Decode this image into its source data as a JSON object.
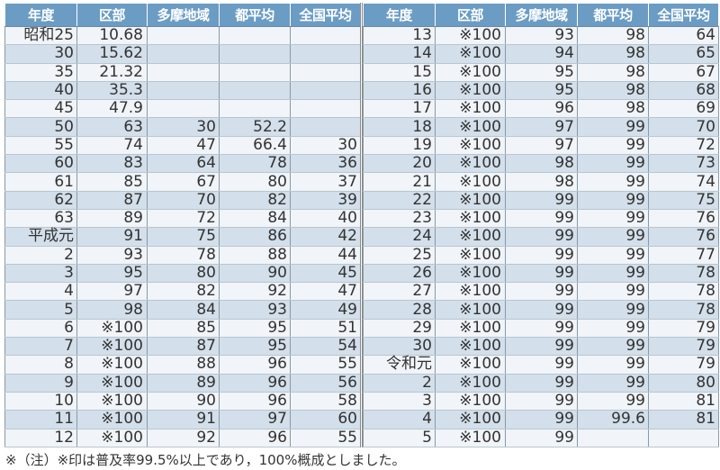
{
  "headers": [
    "年度",
    "区部",
    "多摩地域",
    "都平均",
    "全国平均"
  ],
  "left_rows": [
    [
      "昭和25",
      "10.68",
      "",
      "",
      ""
    ],
    [
      "30",
      "15.62",
      "",
      "",
      ""
    ],
    [
      "35",
      "21.32",
      "",
      "",
      ""
    ],
    [
      "40",
      "35.3",
      "",
      "",
      ""
    ],
    [
      "45",
      "47.9",
      "",
      "",
      ""
    ],
    [
      "50",
      "63",
      "30",
      "52.2",
      ""
    ],
    [
      "55",
      "74",
      "47",
      "66.4",
      "30"
    ],
    [
      "60",
      "83",
      "64",
      "78",
      "36"
    ],
    [
      "61",
      "85",
      "67",
      "80",
      "37"
    ],
    [
      "62",
      "87",
      "70",
      "82",
      "39"
    ],
    [
      "63",
      "89",
      "72",
      "84",
      "40"
    ],
    [
      "平成元",
      "91",
      "75",
      "86",
      "42"
    ],
    [
      "2",
      "93",
      "78",
      "88",
      "44"
    ],
    [
      "3",
      "95",
      "80",
      "90",
      "45"
    ],
    [
      "4",
      "97",
      "82",
      "92",
      "47"
    ],
    [
      "5",
      "98",
      "84",
      "93",
      "49"
    ],
    [
      "6",
      "※100",
      "85",
      "95",
      "51"
    ],
    [
      "7",
      "※100",
      "87",
      "95",
      "54"
    ],
    [
      "8",
      "※100",
      "88",
      "96",
      "55"
    ],
    [
      "9",
      "※100",
      "89",
      "96",
      "56"
    ],
    [
      "10",
      "※100",
      "90",
      "96",
      "58"
    ],
    [
      "11",
      "※100",
      "91",
      "97",
      "60"
    ],
    [
      "12",
      "※100",
      "92",
      "96",
      "55"
    ]
  ],
  "right_rows": [
    [
      "13",
      "※100",
      "93",
      "98",
      "64"
    ],
    [
      "14",
      "※100",
      "94",
      "98",
      "65"
    ],
    [
      "15",
      "※100",
      "95",
      "98",
      "67"
    ],
    [
      "16",
      "※100",
      "95",
      "98",
      "68"
    ],
    [
      "17",
      "※100",
      "96",
      "98",
      "69"
    ],
    [
      "18",
      "※100",
      "97",
      "99",
      "70"
    ],
    [
      "19",
      "※100",
      "97",
      "99",
      "72"
    ],
    [
      "20",
      "※100",
      "98",
      "99",
      "73"
    ],
    [
      "21",
      "※100",
      "98",
      "99",
      "74"
    ],
    [
      "22",
      "※100",
      "99",
      "99",
      "75"
    ],
    [
      "23",
      "※100",
      "99",
      "99",
      "76"
    ],
    [
      "24",
      "※100",
      "99",
      "99",
      "76"
    ],
    [
      "25",
      "※100",
      "99",
      "99",
      "77"
    ],
    [
      "26",
      "※100",
      "99",
      "99",
      "78"
    ],
    [
      "27",
      "※100",
      "99",
      "99",
      "78"
    ],
    [
      "28",
      "※100",
      "99",
      "99",
      "78"
    ],
    [
      "29",
      "※100",
      "99",
      "99",
      "79"
    ],
    [
      "30",
      "※100",
      "99",
      "99",
      "79"
    ],
    [
      "令和元",
      "※100",
      "99",
      "99",
      "79"
    ],
    [
      "2",
      "※100",
      "99",
      "99",
      "80"
    ],
    [
      "3",
      "※100",
      "99",
      "99",
      "81"
    ],
    [
      "4",
      "※100",
      "99",
      "99.6",
      "81"
    ],
    [
      "5",
      "※100",
      "99",
      "",
      ""
    ]
  ],
  "footnote": "※（注）※印は普及率99.5%以上であり，100%概成としました。",
  "colors": {
    "header_bg": "#6b9cc4",
    "row_light": "#f1f4f8",
    "row_dark": "#d3dfea"
  }
}
